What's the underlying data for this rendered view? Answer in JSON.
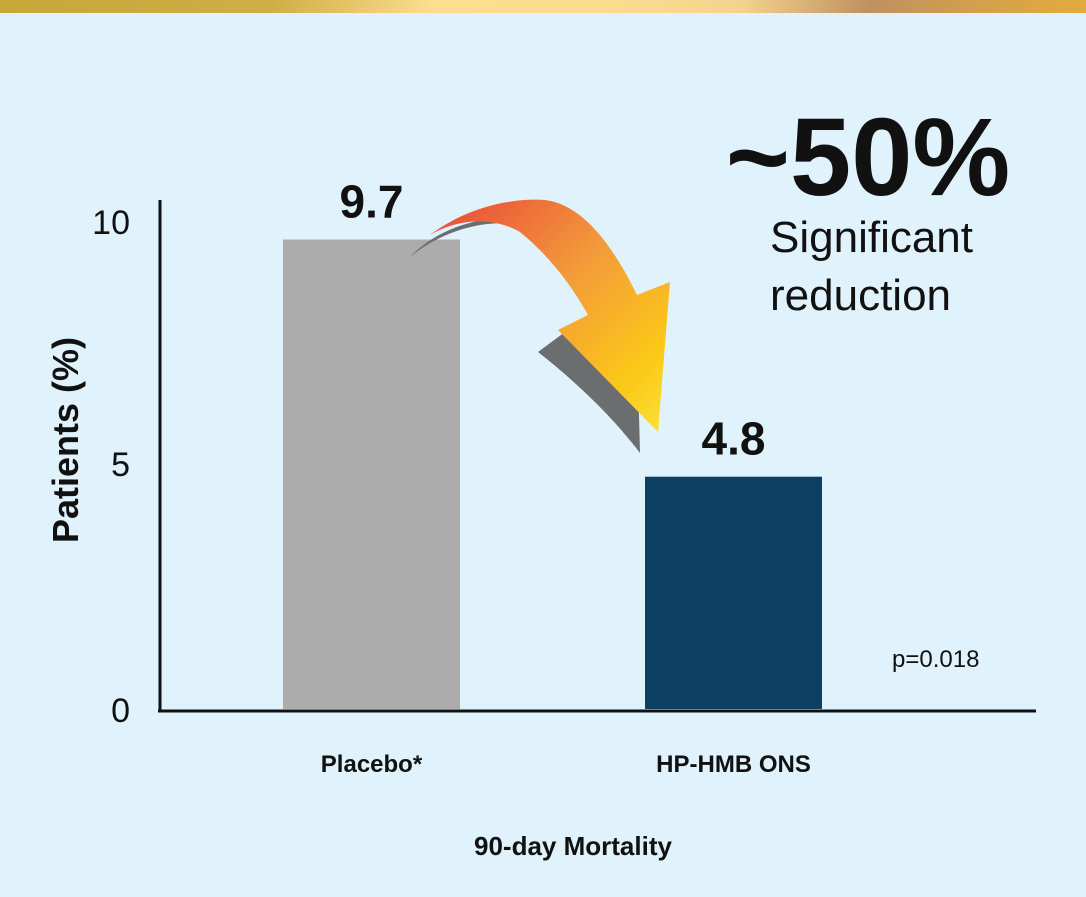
{
  "chart_data": {
    "type": "bar",
    "title": "",
    "categories": [
      "Placebo*",
      "HP-HMB ONS"
    ],
    "values": [
      9.7,
      4.8
    ],
    "data_labels": [
      "9.7",
      "4.8"
    ],
    "colors": [
      "#acacad",
      "#0d3f63"
    ],
    "xlabel": "90-day Mortality",
    "ylabel": "Patients (%)",
    "ylim": [
      0,
      10
    ],
    "yticks": [
      0,
      5,
      10
    ],
    "ytick_labels": [
      "0",
      "5",
      "10"
    ],
    "grid": false,
    "annotations": {
      "headline": "~50%",
      "line1": "Significant",
      "line2": "reduction",
      "pvalue": "p=0.018"
    }
  }
}
